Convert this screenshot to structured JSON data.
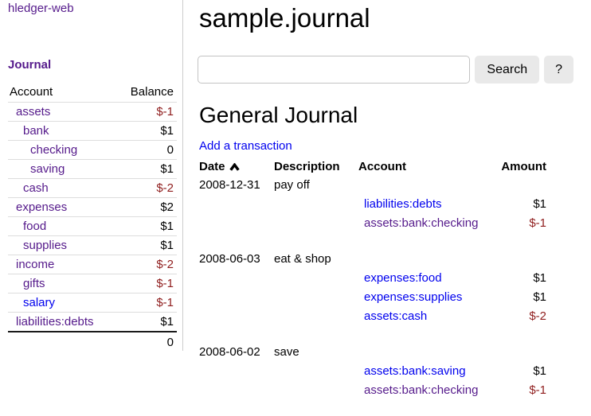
{
  "colors": {
    "link_blue": "#0000ee",
    "link_visited": "#551a8b",
    "negative_red": "#8f1d1d"
  },
  "sidebar": {
    "app_title": "hledger-web",
    "nav_journal": "Journal",
    "table": {
      "col_account": "Account",
      "col_balance": "Balance",
      "accounts": [
        {
          "name": "assets",
          "depth": 1,
          "balance": "$-1",
          "negative": true,
          "visited": true
        },
        {
          "name": "bank",
          "depth": 2,
          "balance": "$1",
          "negative": false,
          "visited": true
        },
        {
          "name": "checking",
          "depth": 3,
          "balance": "0",
          "negative": false,
          "visited": true
        },
        {
          "name": "saving",
          "depth": 3,
          "balance": "$1",
          "negative": false,
          "visited": true
        },
        {
          "name": "cash",
          "depth": 2,
          "balance": "$-2",
          "negative": true,
          "visited": true
        },
        {
          "name": "expenses",
          "depth": 1,
          "balance": "$2",
          "negative": false,
          "visited": true
        },
        {
          "name": "food",
          "depth": 2,
          "balance": "$1",
          "negative": false,
          "visited": true
        },
        {
          "name": "supplies",
          "depth": 2,
          "balance": "$1",
          "negative": false,
          "visited": true
        },
        {
          "name": "income",
          "depth": 1,
          "balance": "$-2",
          "negative": true,
          "visited": true
        },
        {
          "name": "gifts",
          "depth": 2,
          "balance": "$-1",
          "negative": true,
          "visited": true
        },
        {
          "name": "salary",
          "depth": 2,
          "balance": "$-1",
          "negative": true,
          "visited": false
        },
        {
          "name": "liabilities:debts",
          "depth": 1,
          "balance": "$1",
          "negative": false,
          "visited": true
        }
      ],
      "total": "0"
    }
  },
  "main": {
    "page_title": "sample.journal",
    "search": {
      "value": "",
      "placeholder": "",
      "button_label": "Search",
      "help_label": "?"
    },
    "section_title": "General Journal",
    "add_link": "Add a transaction",
    "journal": {
      "columns": [
        "Date",
        "Description",
        "Account",
        "Amount"
      ],
      "sort_column": "Date",
      "sort_icon": "chevron-up",
      "transactions": [
        {
          "date": "2008-12-31",
          "description": "pay off",
          "postings": [
            {
              "account": "liabilities:debts",
              "amount": "$1",
              "negative": false,
              "visited": false
            },
            {
              "account": "assets:bank:checking",
              "amount": "$-1",
              "negative": true,
              "visited": true
            }
          ]
        },
        {
          "date": "2008-06-03",
          "description": "eat & shop",
          "postings": [
            {
              "account": "expenses:food",
              "amount": "$1",
              "negative": false,
              "visited": false
            },
            {
              "account": "expenses:supplies",
              "amount": "$1",
              "negative": false,
              "visited": false
            },
            {
              "account": "assets:cash",
              "amount": "$-2",
              "negative": true,
              "visited": false
            }
          ]
        },
        {
          "date": "2008-06-02",
          "description": "save",
          "postings": [
            {
              "account": "assets:bank:saving",
              "amount": "$1",
              "negative": false,
              "visited": false
            },
            {
              "account": "assets:bank:checking",
              "amount": "$-1",
              "negative": true,
              "visited": true
            }
          ]
        }
      ]
    }
  }
}
